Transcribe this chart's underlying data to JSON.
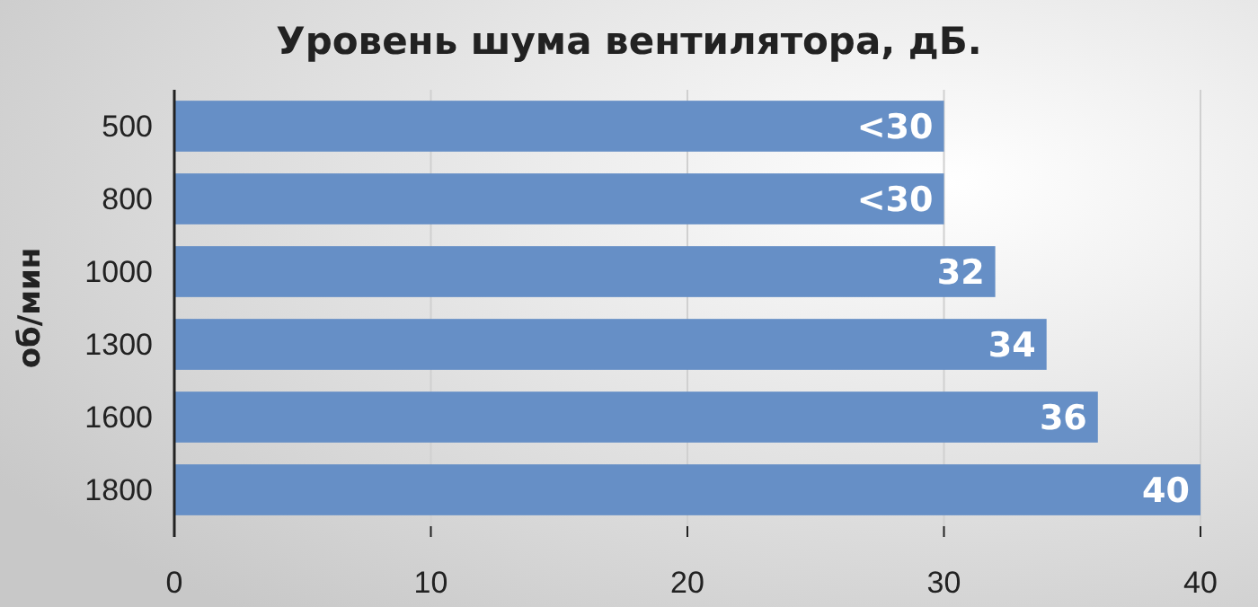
{
  "chart_data": {
    "type": "bar",
    "orientation": "horizontal",
    "title": "Уровень шума вентилятора, дБ.",
    "ylabel": "об/мин",
    "categories": [
      "500",
      "800",
      "1000",
      "1300",
      "1600",
      "1800"
    ],
    "values": [
      30,
      30,
      32,
      34,
      36,
      40
    ],
    "value_labels": [
      "<30",
      "<30",
      "32",
      "34",
      "36",
      "40"
    ],
    "color": "#668fc6",
    "xlim": [
      0,
      40
    ],
    "xticks": [
      0,
      10,
      20,
      30,
      40
    ],
    "grid": "x"
  }
}
